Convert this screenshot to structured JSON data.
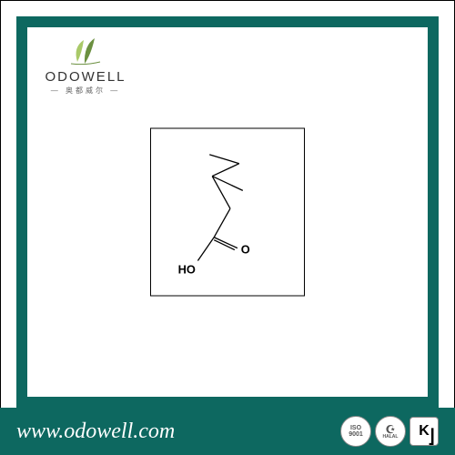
{
  "theme": {
    "frame_color": "#0d6860",
    "border_color": "#000000",
    "url_text_color": "#ffffff",
    "molecule_line_color": "#000000"
  },
  "logo": {
    "brand_name": "ODOWELL",
    "subtitle": "— 奥都威尔 —",
    "leaf_color_1": "#a9c968",
    "leaf_color_2": "#6b9040"
  },
  "molecule": {
    "label_o": "O",
    "label_ho": "HO",
    "lines": [
      [
        65,
        18,
        98,
        28
      ],
      [
        98,
        28,
        68,
        42
      ],
      [
        68,
        42,
        102,
        58
      ],
      [
        68,
        42,
        88,
        78
      ],
      [
        88,
        78,
        70,
        110
      ],
      [
        70,
        110,
        96,
        122
      ],
      [
        70,
        113,
        93,
        124
      ],
      [
        70,
        110,
        52,
        136
      ]
    ]
  },
  "url": "www.odowell.com",
  "badges": {
    "iso": "ISO\n9001",
    "halal": "HALAL",
    "kosher": "K"
  }
}
